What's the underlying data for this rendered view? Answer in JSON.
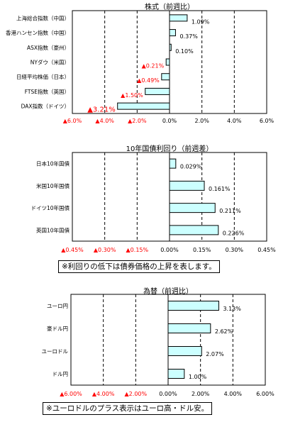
{
  "chart_data": [
    {
      "type": "bar",
      "orientation": "horizontal",
      "title": "株式（前週比）",
      "categories": [
        "上海総合指数（中国）",
        "香港ハンセン指数（中国）",
        "ASX指数（豪州）",
        "NYダウ（米国）",
        "日経平均株価（日本）",
        "FTSE指数（英国）",
        "DAX指数（ドイツ）"
      ],
      "values": [
        1.09,
        0.37,
        0.1,
        -0.21,
        -0.49,
        -1.5,
        -3.21
      ],
      "value_labels": [
        "1.09%",
        "0.37%",
        "0.10%",
        "▲0.21%",
        "▲0.49%",
        "▲1.50%",
        "▲3.21%"
      ],
      "xlim": [
        -6,
        6
      ],
      "ticks": [
        -6,
        -4,
        -2,
        0,
        2,
        4,
        6
      ],
      "tick_labels": [
        "▲6.0%",
        "▲4.0%",
        "▲2.0%",
        "0.0%",
        "2.0%",
        "4.0%",
        "6.0%"
      ],
      "grid": true
    },
    {
      "type": "bar",
      "orientation": "horizontal",
      "title": "10年国債利回り（前週差）",
      "categories": [
        "日本10年国債",
        "米国10年国債",
        "ドイツ10年国債",
        "英国10年国債"
      ],
      "values": [
        0.029,
        0.161,
        0.211,
        0.226
      ],
      "value_labels": [
        "0.029%",
        "0.161%",
        "0.211%",
        "0.226%"
      ],
      "xlim": [
        -0.45,
        0.45
      ],
      "ticks": [
        -0.45,
        -0.3,
        -0.15,
        0,
        0.15,
        0.3,
        0.45
      ],
      "tick_labels": [
        "▲0.45%",
        "▲0.30%",
        "▲0.15%",
        "0.00%",
        "0.15%",
        "0.30%",
        "0.45%"
      ],
      "grid": true,
      "note": "※利回りの低下は債券価格の上昇を表します。"
    },
    {
      "type": "bar",
      "orientation": "horizontal",
      "title": "為替（前週比）",
      "categories": [
        "ユーロ円",
        "豪ドル円",
        "ユーロドル",
        "ドル円"
      ],
      "values": [
        3.13,
        2.62,
        2.07,
        1.0
      ],
      "value_labels": [
        "3.13%",
        "2.62%",
        "2.07%",
        "1.00%"
      ],
      "xlim": [
        -6,
        6
      ],
      "ticks": [
        -6,
        -4,
        -2,
        0,
        2,
        4,
        6
      ],
      "tick_labels": [
        "▲6.00%",
        "▲4.00%",
        "▲2.00%",
        "0.00%",
        "2.00%",
        "4.00%",
        "6.00%"
      ],
      "grid": true,
      "note": "※ユーロドルのプラス表示はユーロ高・ドル安。"
    }
  ],
  "colors": {
    "bar_fill": "#ccffff",
    "bar_stroke": "#000000",
    "negative_text": "#ff0000",
    "positive_text": "#000000"
  }
}
